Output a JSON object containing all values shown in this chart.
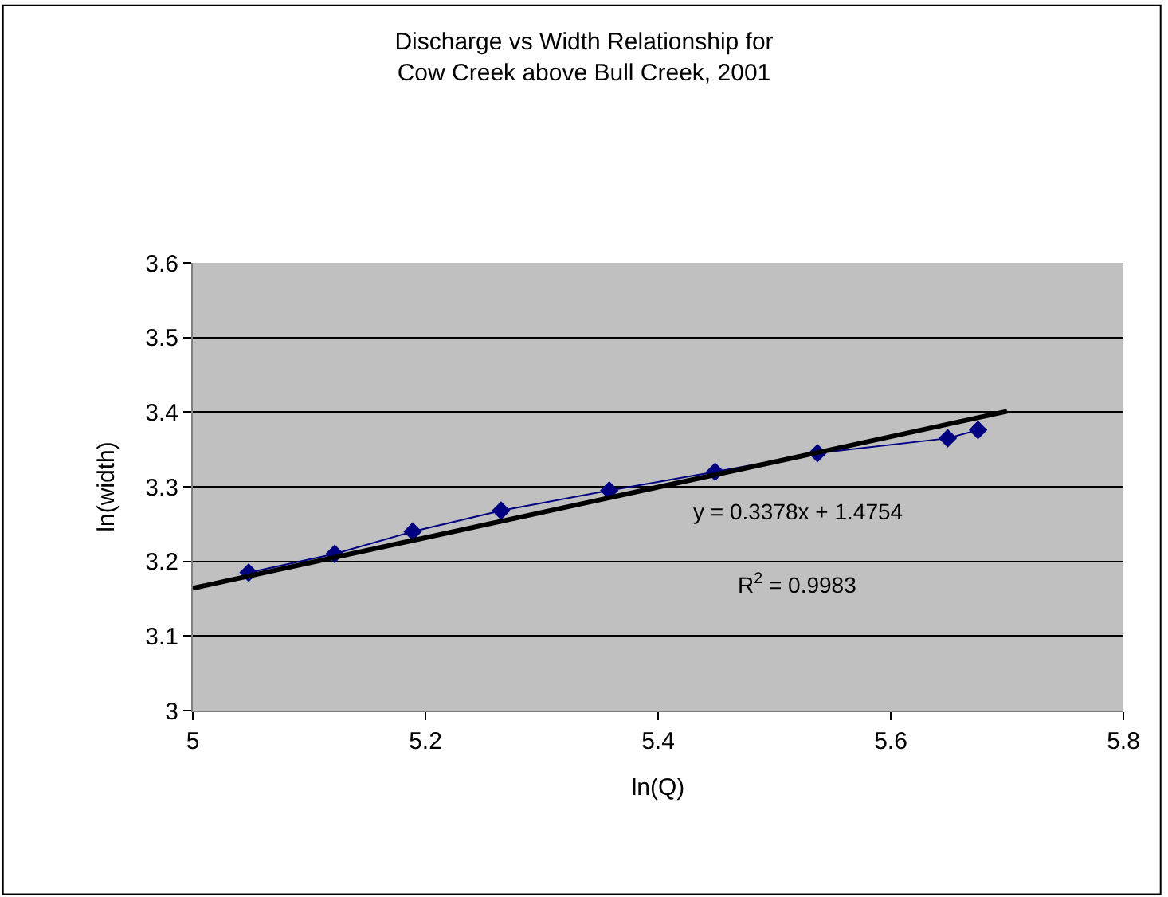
{
  "chart_data": {
    "type": "line",
    "title": "Discharge vs Width Relationship for\nCow Creek above Bull Creek, 2001",
    "xlabel": "ln(Q)",
    "ylabel": "ln(width)",
    "series": [
      {
        "color": "#000080",
        "marker": "diamond",
        "x": [
          5.048,
          5.122,
          5.189,
          5.265,
          5.358,
          5.449,
          5.537,
          5.649,
          5.675
        ],
        "values": [
          3.185,
          3.21,
          3.24,
          3.268,
          3.295,
          3.32,
          3.345,
          3.365,
          3.376
        ]
      },
      {
        "color": "#000000",
        "marker": "none",
        "x": [
          5,
          5.7
        ],
        "values": [
          3.164,
          3.401
        ]
      }
    ],
    "annotations": [
      "y = 0.3378x + 1.4754",
      "R$^{2}$ = 0.9983"
    ],
    "xlim": [
      5,
      5.8
    ],
    "xticks": [
      5,
      5.2,
      5.4,
      5.6,
      5.8
    ],
    "ylim": [
      3,
      3.6
    ],
    "yticks": [
      3,
      3.1,
      3.2,
      3.3,
      3.4,
      3.5,
      3.6
    ],
    "grid": "y"
  }
}
